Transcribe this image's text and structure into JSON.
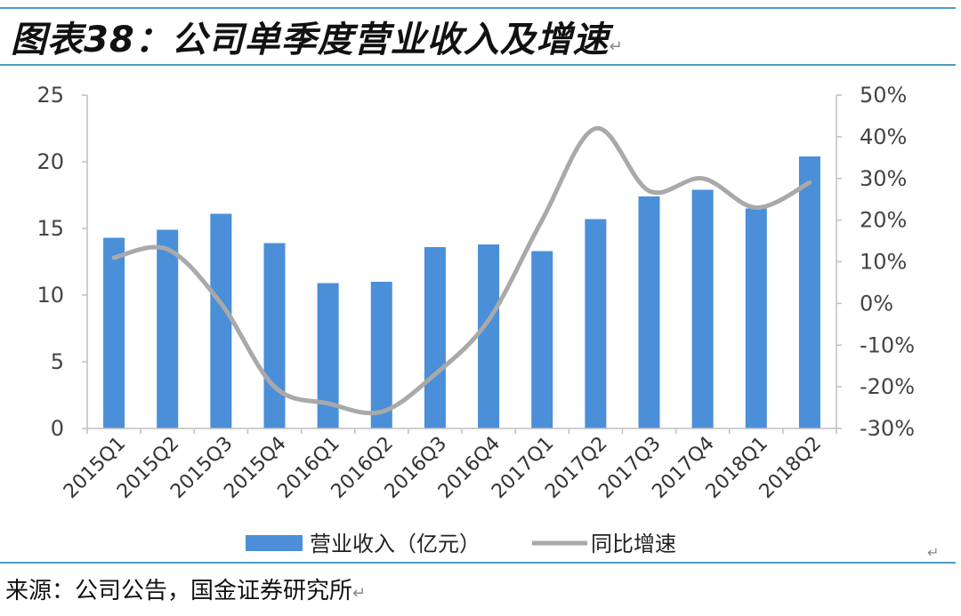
{
  "figure": {
    "title": "图表38：公司单季度营业收入及增速",
    "source": "来源：公司公告，国金证券研究所",
    "return_mark": "↵"
  },
  "chart_data": {
    "type": "bar",
    "categories": [
      "2015Q1",
      "2015Q2",
      "2015Q3",
      "2015Q4",
      "2016Q1",
      "2016Q2",
      "2016Q3",
      "2016Q4",
      "2017Q1",
      "2017Q2",
      "2017Q3",
      "2017Q4",
      "2018Q1",
      "2018Q2"
    ],
    "series": [
      {
        "name": "营业收入（亿元）",
        "type": "bar",
        "axis": "left",
        "color": "#4a8fd8",
        "values": [
          14.3,
          14.9,
          16.1,
          13.9,
          10.9,
          11.0,
          13.6,
          13.8,
          13.3,
          15.7,
          17.4,
          17.9,
          16.5,
          20.4
        ]
      },
      {
        "name": "同比增速",
        "type": "line",
        "axis": "right",
        "color": "#a9a9a9",
        "values": [
          11,
          13,
          0,
          -20,
          -24,
          -26,
          -17,
          -4,
          20,
          42,
          27,
          30,
          23,
          29
        ]
      }
    ],
    "left_axis": {
      "min": 0,
      "max": 25,
      "ticks": [
        "0",
        "5",
        "10",
        "15",
        "20",
        "25"
      ],
      "tick_values": [
        0,
        5,
        10,
        15,
        20,
        25
      ]
    },
    "right_axis": {
      "min": -30,
      "max": 50,
      "ticks": [
        "-30%",
        "-20%",
        "-10%",
        "0%",
        "10%",
        "20%",
        "30%",
        "40%",
        "50%"
      ],
      "tick_values": [
        -30,
        -20,
        -10,
        0,
        10,
        20,
        30,
        40,
        50
      ]
    },
    "legend_position": "bottom",
    "grid": false
  }
}
